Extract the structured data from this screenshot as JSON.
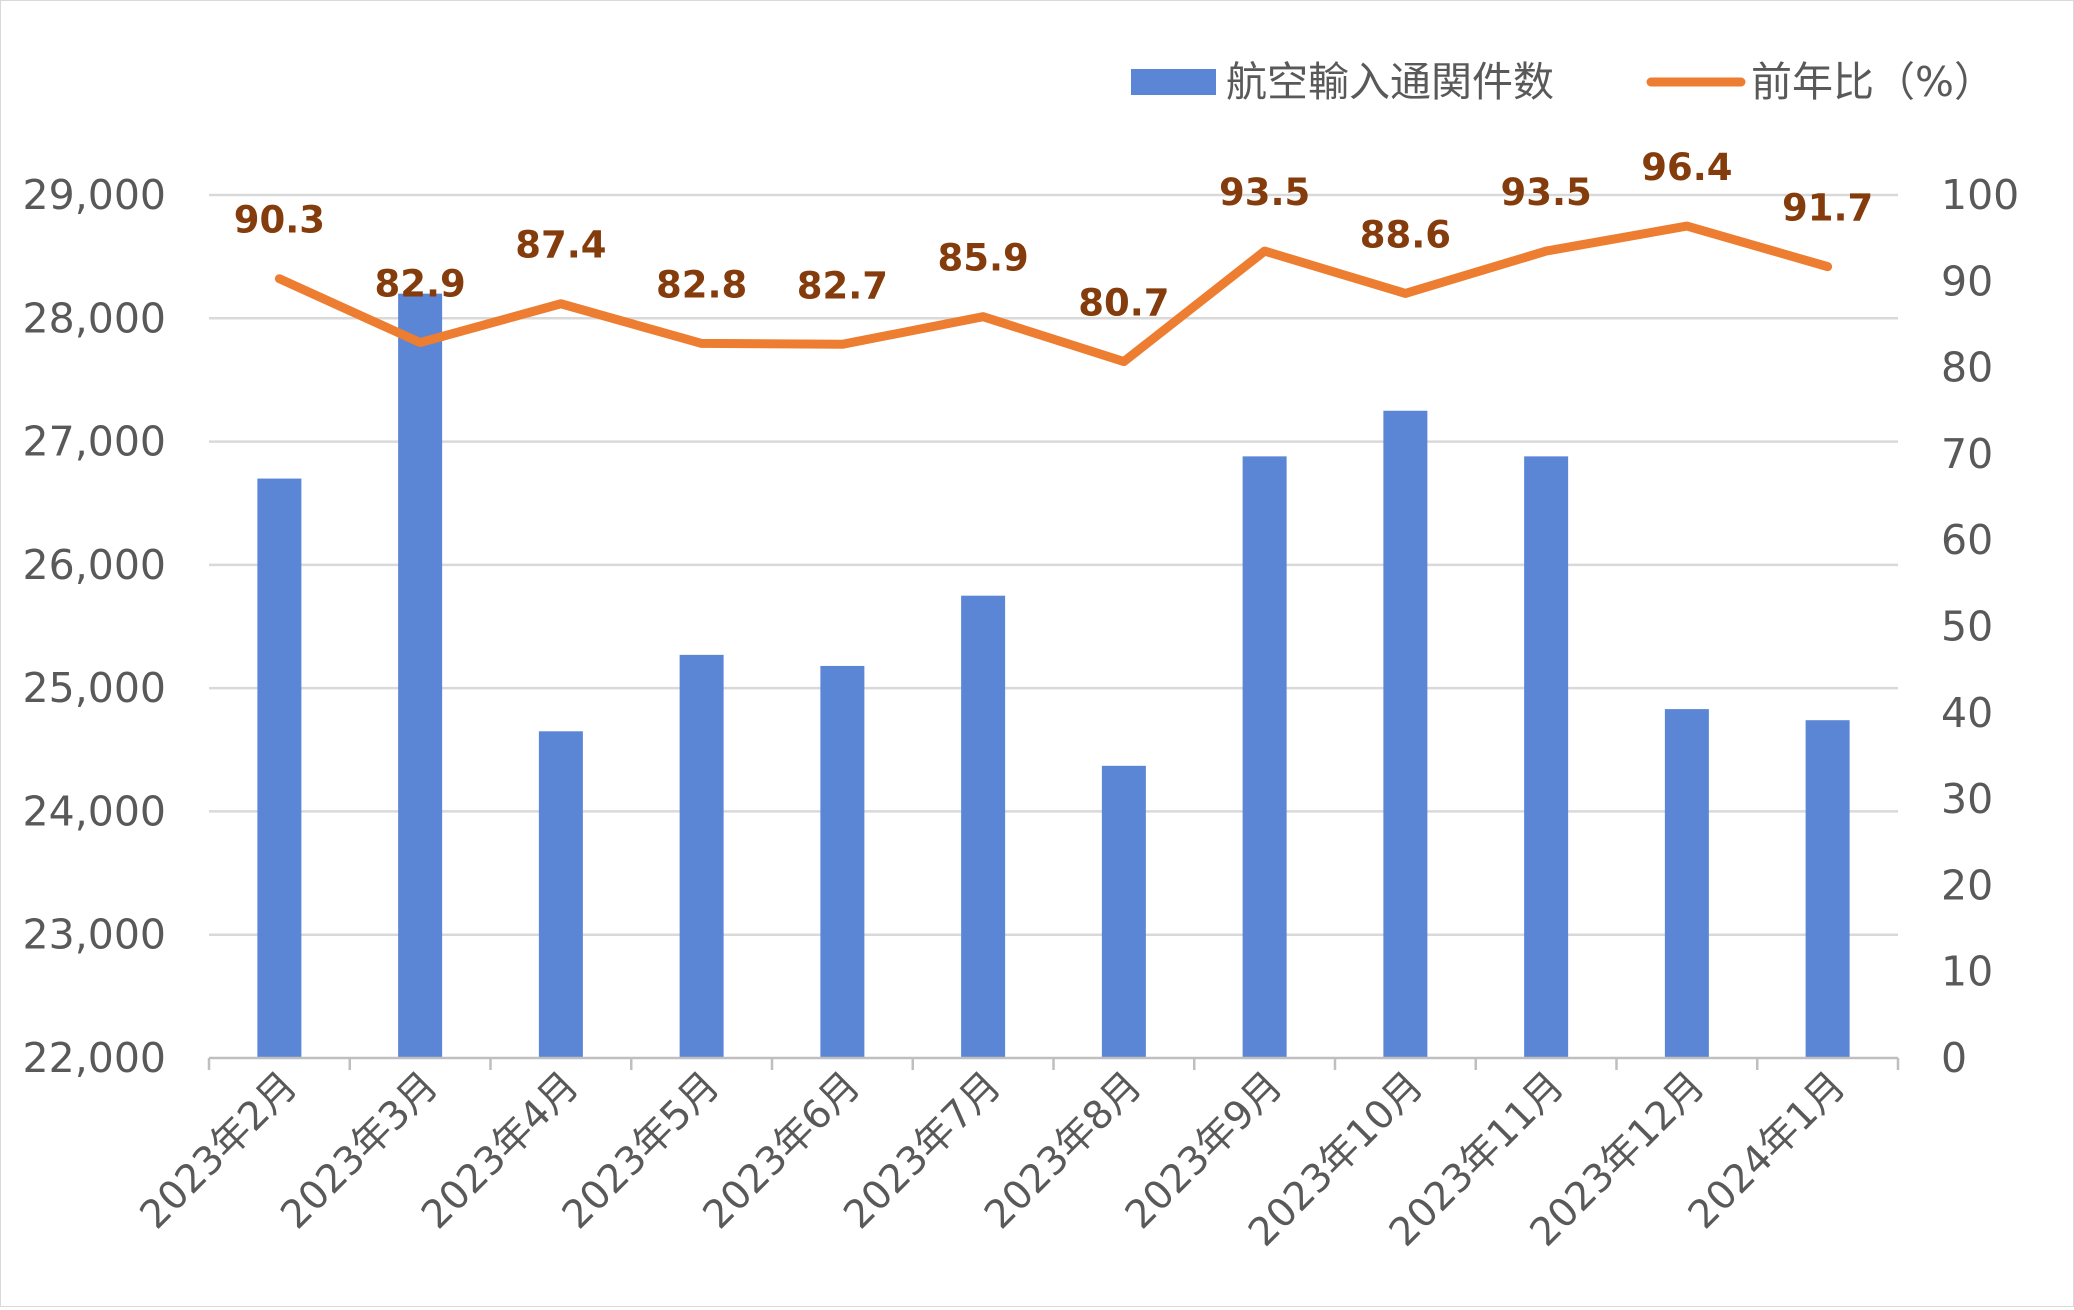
{
  "chart_data": {
    "type": "bar",
    "categories": [
      "2023年2月",
      "2023年3月",
      "2023年4月",
      "2023年5月",
      "2023年6月",
      "2023年7月",
      "2023年8月",
      "2023年9月",
      "2023年10月",
      "2023年11月",
      "2023年12月",
      "2024年1月"
    ],
    "series": [
      {
        "name": "航空輸入通関件数",
        "type": "bar",
        "axis": "left",
        "color": "#5b86d6",
        "values": [
          26700,
          28200,
          24650,
          25270,
          25180,
          25750,
          24370,
          26880,
          27250,
          26880,
          24830,
          24740
        ]
      },
      {
        "name": "前年比（%）",
        "type": "line",
        "axis": "right",
        "color": "#ed7d31",
        "values": [
          90.3,
          82.9,
          87.4,
          82.8,
          82.7,
          85.9,
          80.7,
          93.5,
          88.6,
          93.5,
          96.4,
          91.7
        ],
        "labels": [
          "90.3",
          "82.9",
          "87.4",
          "82.8",
          "82.7",
          "85.9",
          "80.7",
          "93.5",
          "88.6",
          "93.5",
          "96.4",
          "91.7"
        ]
      }
    ],
    "y_left": {
      "range": [
        22000,
        29000
      ],
      "ticks": [
        22000,
        23000,
        24000,
        25000,
        26000,
        27000,
        28000,
        29000
      ],
      "tick_labels": [
        "22,000",
        "23,000",
        "24,000",
        "25,000",
        "26,000",
        "27,000",
        "28,000",
        "29,000"
      ]
    },
    "y_right": {
      "range": [
        0,
        100
      ],
      "ticks": [
        0,
        10,
        20,
        30,
        40,
        50,
        60,
        70,
        80,
        90,
        100
      ],
      "tick_labels": [
        "0",
        "10",
        "20",
        "30",
        "40",
        "50",
        "60",
        "70",
        "80",
        "90",
        "100"
      ]
    },
    "grid": true,
    "legend": {
      "position": "top-right",
      "entries": [
        "航空輸入通関件数",
        "前年比（%）"
      ]
    },
    "title": "",
    "xlabel": "",
    "ylabel": ""
  }
}
